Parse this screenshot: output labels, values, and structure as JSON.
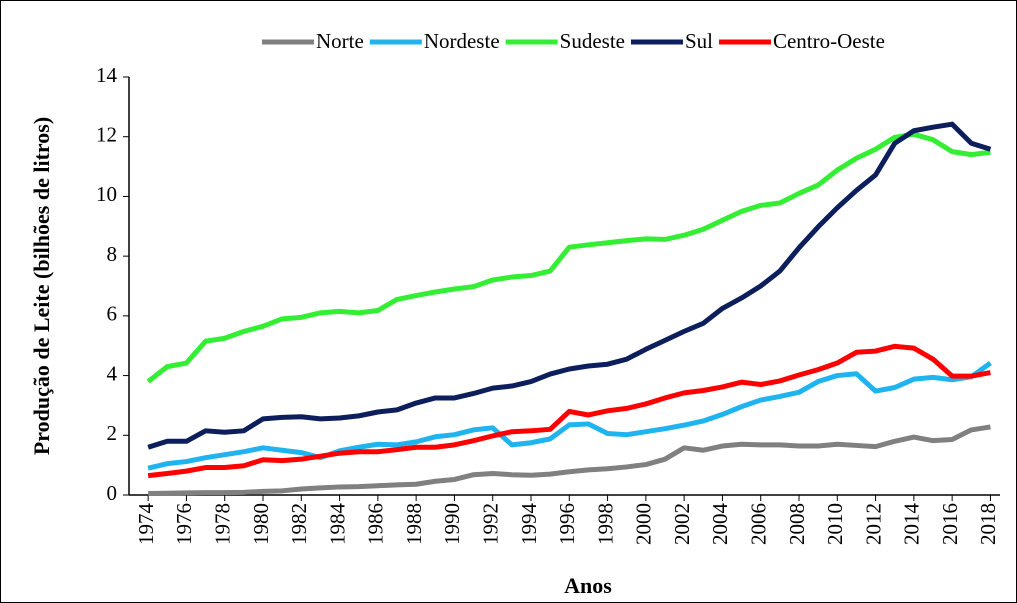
{
  "chart_data": {
    "type": "line",
    "x_label": "Anos",
    "y_label": "Produção de Leite (bilhões de litros)",
    "x": [
      1974,
      1975,
      1976,
      1977,
      1978,
      1979,
      1980,
      1981,
      1982,
      1983,
      1984,
      1985,
      1986,
      1987,
      1988,
      1989,
      1990,
      1991,
      1992,
      1993,
      1994,
      1995,
      1996,
      1997,
      1998,
      1999,
      2000,
      2001,
      2002,
      2003,
      2004,
      2005,
      2006,
      2007,
      2008,
      2009,
      2010,
      2011,
      2012,
      2013,
      2014,
      2015,
      2016,
      2017,
      2018
    ],
    "xlim": [
      1973,
      2018.5
    ],
    "xticks": [
      1974,
      1976,
      1978,
      1980,
      1982,
      1984,
      1986,
      1988,
      1990,
      1992,
      1994,
      1996,
      1998,
      2000,
      2002,
      2004,
      2006,
      2008,
      2010,
      2012,
      2014,
      2016,
      2018
    ],
    "ylim": [
      0,
      14
    ],
    "yticks": [
      0,
      2,
      4,
      6,
      8,
      10,
      12,
      14
    ],
    "grid": false,
    "legend": "top",
    "series": [
      {
        "name": "Norte",
        "color": "#808080",
        "values": [
          0.05,
          0.06,
          0.07,
          0.08,
          0.08,
          0.09,
          0.12,
          0.14,
          0.2,
          0.24,
          0.27,
          0.28,
          0.31,
          0.34,
          0.36,
          0.46,
          0.52,
          0.68,
          0.72,
          0.68,
          0.66,
          0.7,
          0.78,
          0.84,
          0.88,
          0.94,
          1.02,
          1.2,
          1.58,
          1.5,
          1.64,
          1.7,
          1.68,
          1.68,
          1.64,
          1.64,
          1.7,
          1.66,
          1.62,
          1.8,
          1.94,
          1.82,
          1.86,
          2.18,
          2.28
        ]
      },
      {
        "name": "Nordeste",
        "color": "#1fb4f0",
        "values": [
          0.9,
          1.05,
          1.12,
          1.25,
          1.35,
          1.45,
          1.58,
          1.5,
          1.42,
          1.25,
          1.48,
          1.6,
          1.7,
          1.68,
          1.78,
          1.95,
          2.02,
          2.18,
          2.25,
          1.68,
          1.75,
          1.88,
          2.35,
          2.38,
          2.06,
          2.02,
          2.12,
          2.22,
          2.34,
          2.48,
          2.7,
          2.96,
          3.18,
          3.3,
          3.44,
          3.8,
          4.0,
          4.06,
          3.48,
          3.6,
          3.88,
          3.94,
          3.86,
          3.96,
          4.42
        ]
      },
      {
        "name": "Sudeste",
        "color": "#33ee33",
        "values": [
          3.8,
          4.3,
          4.42,
          5.15,
          5.25,
          5.48,
          5.65,
          5.9,
          5.95,
          6.1,
          6.15,
          6.1,
          6.18,
          6.55,
          6.68,
          6.8,
          6.9,
          6.98,
          7.2,
          7.3,
          7.35,
          7.5,
          8.3,
          8.38,
          8.45,
          8.52,
          8.58,
          8.56,
          8.7,
          8.9,
          9.2,
          9.5,
          9.7,
          9.78,
          10.1,
          10.38,
          10.88,
          11.28,
          11.58,
          11.98,
          12.08,
          11.9,
          11.5,
          11.4,
          11.48
        ]
      },
      {
        "name": "Sul",
        "color": "#0c1f5c",
        "values": [
          1.6,
          1.8,
          1.8,
          2.15,
          2.1,
          2.15,
          2.55,
          2.6,
          2.62,
          2.55,
          2.58,
          2.65,
          2.78,
          2.85,
          3.08,
          3.25,
          3.25,
          3.4,
          3.58,
          3.65,
          3.8,
          4.05,
          4.22,
          4.32,
          4.38,
          4.55,
          4.88,
          5.18,
          5.48,
          5.75,
          6.25,
          6.6,
          7.0,
          7.5,
          8.28,
          8.98,
          9.62,
          10.2,
          10.72,
          11.78,
          12.2,
          12.32,
          12.42,
          11.78,
          11.58
        ]
      },
      {
        "name": "Centro-Oeste",
        "color": "#ff0000",
        "values": [
          0.65,
          0.72,
          0.8,
          0.92,
          0.92,
          0.98,
          1.18,
          1.15,
          1.2,
          1.3,
          1.4,
          1.45,
          1.45,
          1.52,
          1.6,
          1.6,
          1.68,
          1.82,
          1.98,
          2.12,
          2.15,
          2.2,
          2.8,
          2.68,
          2.82,
          2.9,
          3.05,
          3.25,
          3.42,
          3.5,
          3.62,
          3.78,
          3.7,
          3.82,
          4.02,
          4.2,
          4.42,
          4.78,
          4.82,
          4.98,
          4.92,
          4.55,
          3.98,
          3.98,
          4.1
        ]
      }
    ]
  }
}
